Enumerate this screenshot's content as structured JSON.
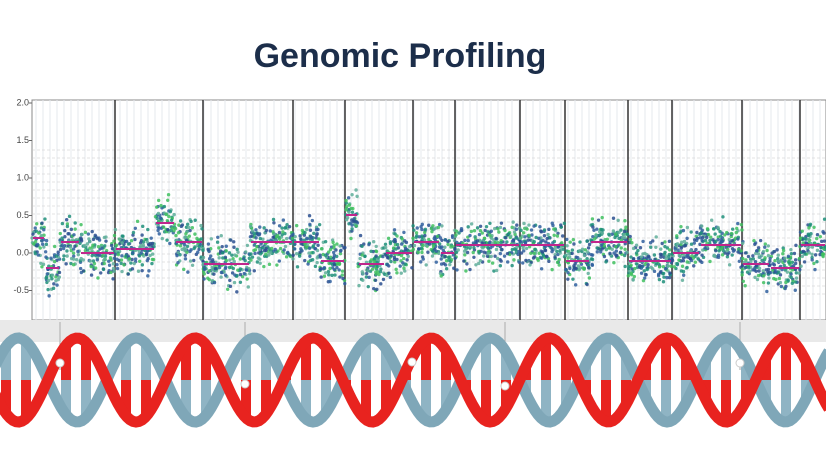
{
  "title": "Genomic Profiling",
  "axis_labels": [
    "2.0",
    "1.5",
    "1.0",
    "0.5",
    "0.0",
    "-0.5"
  ]
}
